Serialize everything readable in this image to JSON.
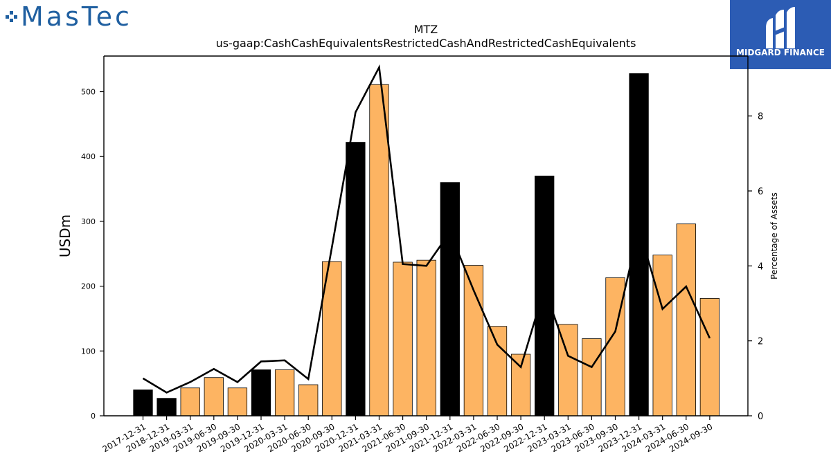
{
  "branding": {
    "left_logo_text": "MasTec",
    "right_logo_text": "MIDGARD FINANCE"
  },
  "chart_data": {
    "type": "bar",
    "title": "MTZ",
    "subtitle": "us-gaap:CashCashEquivalentsRestrictedCashAndRestrictedCashEquivalents",
    "ylabel": "USDm",
    "y2label": "Percentage of Assets",
    "ylim": [
      0,
      555
    ],
    "y2lim": [
      0,
      9.6
    ],
    "yticks": [
      0,
      100,
      200,
      300,
      400,
      500
    ],
    "y2ticks": [
      0,
      2,
      4,
      6,
      8
    ],
    "categories": [
      "2017-12-31",
      "2018-12-31",
      "2019-03-31",
      "2019-06-30",
      "2019-09-30",
      "2019-12-31",
      "2020-03-31",
      "2020-06-30",
      "2020-09-30",
      "2020-12-31",
      "2021-03-31",
      "2021-06-30",
      "2021-09-30",
      "2021-12-31",
      "2022-03-31",
      "2022-06-30",
      "2022-09-30",
      "2022-12-31",
      "2023-03-31",
      "2023-06-30",
      "2023-09-30",
      "2023-12-31",
      "2024-03-31",
      "2024-06-30",
      "2024-09-30"
    ],
    "series": [
      {
        "type": "bar",
        "values": [
          40,
          27,
          43,
          59,
          43,
          71,
          71,
          48,
          238,
          422,
          511,
          237,
          240,
          360,
          232,
          138,
          95,
          370,
          141,
          119,
          213,
          528,
          248,
          296,
          181
        ],
        "annual_flags": [
          true,
          true,
          false,
          false,
          false,
          true,
          false,
          false,
          false,
          true,
          false,
          false,
          false,
          true,
          false,
          false,
          false,
          true,
          false,
          false,
          false,
          true,
          false,
          false,
          false
        ]
      },
      {
        "type": "line",
        "axis": "right",
        "values": [
          1.0,
          0.62,
          0.9,
          1.25,
          0.9,
          1.45,
          1.48,
          0.98,
          4.5,
          8.1,
          9.3,
          4.05,
          4.0,
          4.9,
          3.35,
          1.9,
          1.3,
          3.4,
          1.6,
          1.3,
          2.25,
          5.0,
          2.85,
          3.45,
          2.07
        ]
      }
    ],
    "colors": {
      "annual": "#000000",
      "quarterly": "#fdb462",
      "line": "#000000"
    }
  }
}
